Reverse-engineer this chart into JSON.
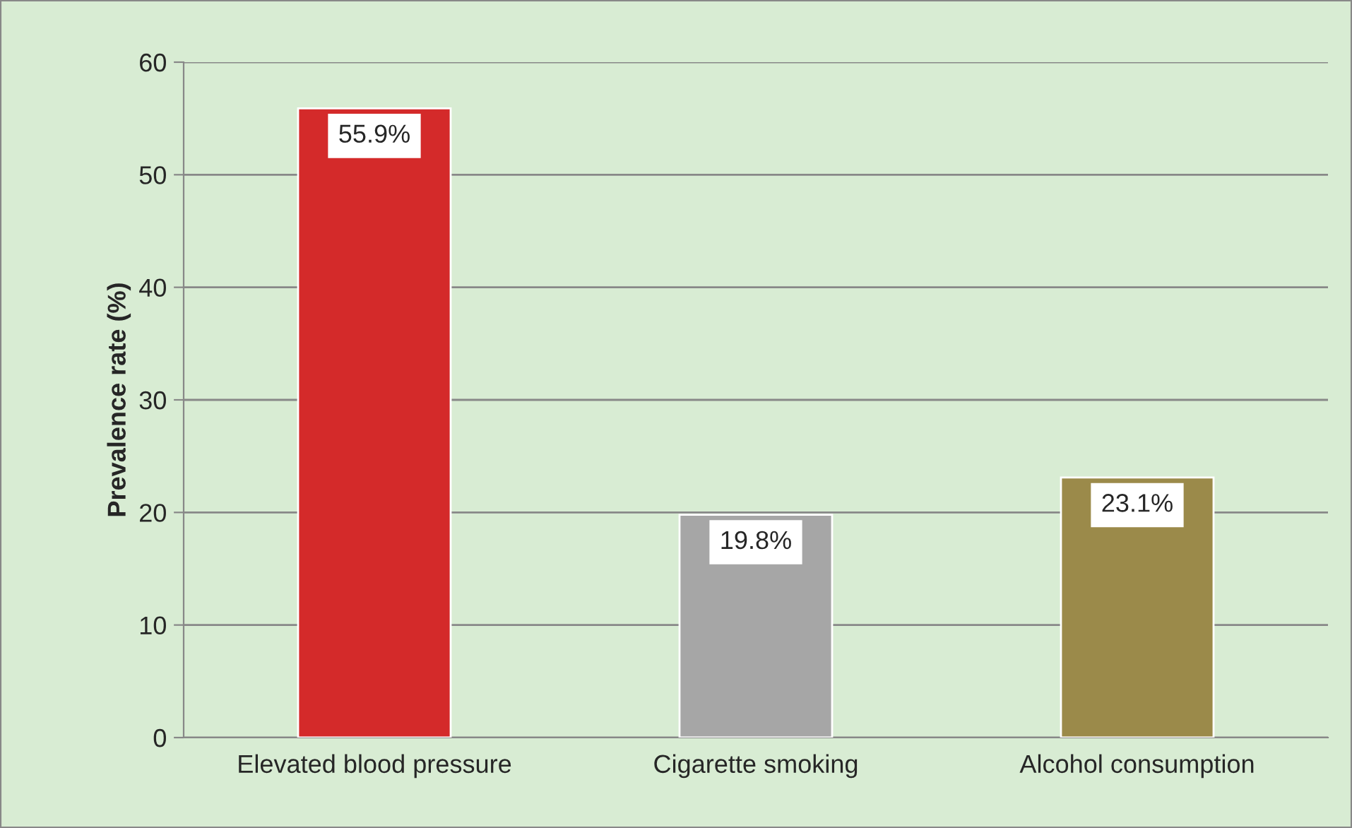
{
  "chart_data": {
    "type": "bar",
    "ylabel": "Prevalence rate (%)",
    "categories": [
      "Elevated blood pressure",
      "Cigarette smoking",
      "Alcohol consumption"
    ],
    "values": [
      55.9,
      19.8,
      23.1
    ],
    "colors": [
      "#d42a2a",
      "#a6a6a6",
      "#9b8a4a"
    ],
    "value_labels": [
      "55.9%",
      "19.8%",
      "23.1%"
    ],
    "ylim": [
      0,
      60
    ],
    "yticks": [
      0,
      10,
      20,
      30,
      40,
      50,
      60
    ],
    "grid": "y"
  }
}
